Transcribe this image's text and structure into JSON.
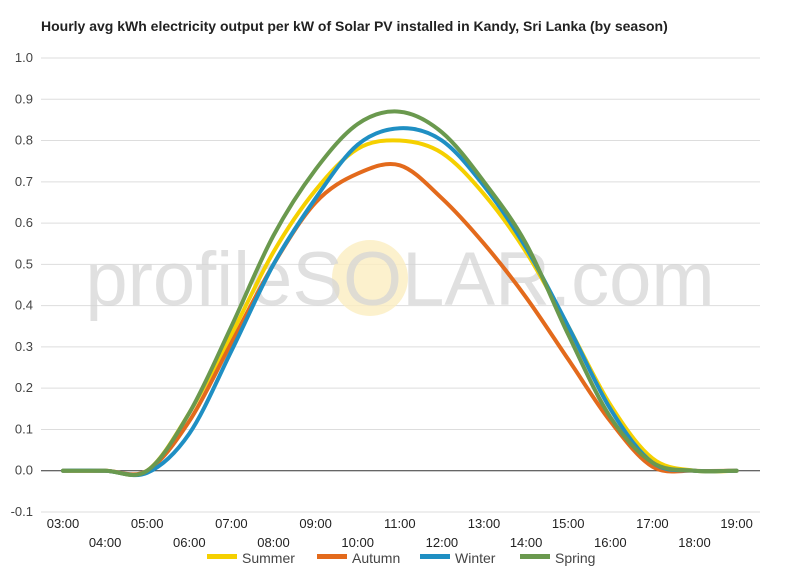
{
  "chart_data": {
    "type": "line",
    "title": "Hourly avg kWh electricity output per kW of Solar PV installed in Kandy, Sri Lanka (by season)",
    "xlabel": "",
    "ylabel": "",
    "ylim": [
      -0.1,
      1.0
    ],
    "yticks": [
      "1.0",
      "0.9",
      "0.8",
      "0.7",
      "0.6",
      "0.5",
      "0.4",
      "0.3",
      "0.2",
      "0.1",
      "0.0",
      "-0.1"
    ],
    "categories": [
      "03:00",
      "04:00",
      "05:00",
      "06:00",
      "07:00",
      "08:00",
      "09:00",
      "10:00",
      "11:00",
      "12:00",
      "13:00",
      "14:00",
      "15:00",
      "16:00",
      "17:00",
      "18:00",
      "19:00"
    ],
    "grid": true,
    "legend_position": "bottom",
    "series": [
      {
        "name": "Summer",
        "color": "#f5d000",
        "values": [
          0.0,
          0.0,
          0.0,
          0.14,
          0.33,
          0.53,
          0.68,
          0.78,
          0.8,
          0.77,
          0.67,
          0.53,
          0.35,
          0.16,
          0.03,
          0.0,
          0.0
        ]
      },
      {
        "name": "Autumn",
        "color": "#e36a1c",
        "values": [
          0.0,
          0.0,
          0.0,
          0.12,
          0.31,
          0.5,
          0.65,
          0.72,
          0.74,
          0.66,
          0.55,
          0.42,
          0.27,
          0.12,
          0.01,
          0.0,
          0.0
        ]
      },
      {
        "name": "Winter",
        "color": "#1f8fc3",
        "values": [
          0.0,
          0.0,
          -0.005,
          0.09,
          0.29,
          0.5,
          0.66,
          0.79,
          0.83,
          0.8,
          0.69,
          0.54,
          0.35,
          0.15,
          0.02,
          0.0,
          0.0
        ]
      },
      {
        "name": "Spring",
        "color": "#6a994e",
        "values": [
          0.0,
          0.0,
          0.0,
          0.14,
          0.35,
          0.57,
          0.73,
          0.84,
          0.87,
          0.82,
          0.7,
          0.55,
          0.33,
          0.13,
          0.02,
          0.0,
          0.0
        ]
      }
    ]
  },
  "watermark": {
    "text": "profileSOLAR.com"
  }
}
